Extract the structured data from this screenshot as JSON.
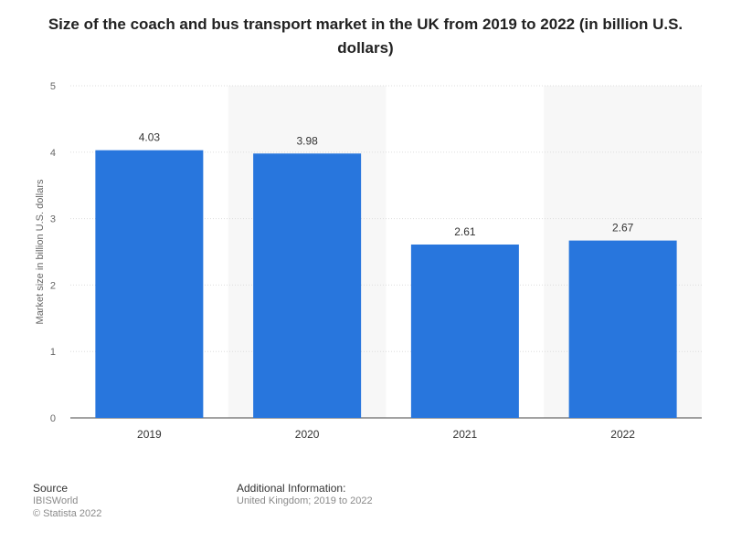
{
  "chart_data": {
    "type": "bar",
    "title": "Size of the coach and bus transport market in the UK from 2019 to 2022 (in billion U.S. dollars)",
    "xlabel": "",
    "ylabel": "Market size in billion U.S. dollars",
    "categories": [
      "2019",
      "2020",
      "2021",
      "2022"
    ],
    "values": [
      4.03,
      3.98,
      2.61,
      2.67
    ],
    "value_labels": [
      "4.03",
      "3.98",
      "2.61",
      "2.67"
    ],
    "ylim": [
      0,
      5
    ],
    "yticks": [
      0,
      1,
      2,
      3,
      4,
      5
    ],
    "grid": true,
    "bar_color": "#2876dd"
  },
  "footer": {
    "source_heading": "Source",
    "source_line1": "IBISWorld",
    "source_line2": "© Statista 2022",
    "info_heading": "Additional Information:",
    "info_line": "United Kingdom; 2019 to 2022"
  }
}
